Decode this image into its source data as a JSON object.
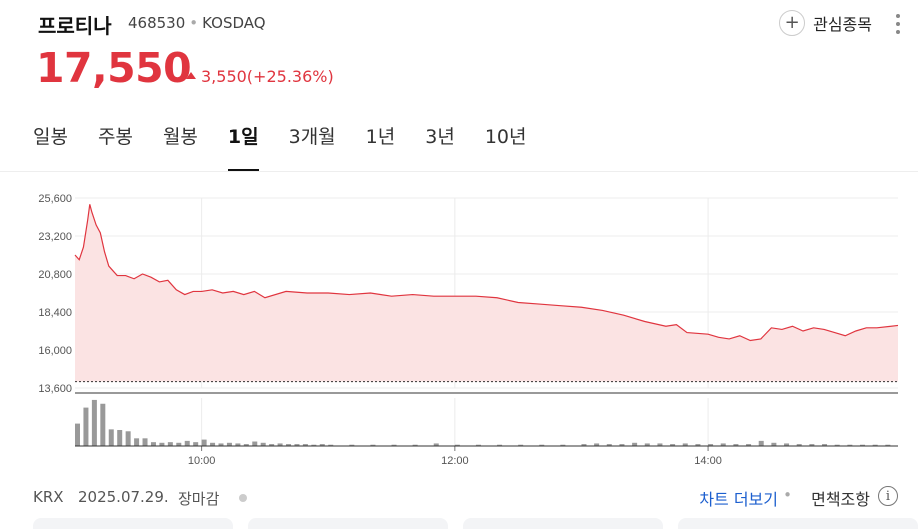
{
  "stock": {
    "name": "프로티나",
    "code": "468530",
    "market": "KOSDAQ",
    "price": "17,550",
    "change": "3,550(+25.36%)"
  },
  "watchlist": {
    "label": "관심종목",
    "plus_icon": "+"
  },
  "tabs": [
    {
      "label": "일봉"
    },
    {
      "label": "주봉"
    },
    {
      "label": "월봉"
    },
    {
      "label": "1일"
    },
    {
      "label": "3개월"
    },
    {
      "label": "1년"
    },
    {
      "label": "3년"
    },
    {
      "label": "10년"
    }
  ],
  "active_tab": "1일",
  "colors": {
    "up": "#e0353f",
    "area_fill": "#fbe3e3",
    "volume": "#999999"
  },
  "chart_data": {
    "type": "area",
    "x_ticks": [
      "10:00",
      "12:00",
      "14:00"
    ],
    "y_ticks": [
      "25,600",
      "23,200",
      "20,800",
      "18,400",
      "16,000",
      "13,600"
    ],
    "ylim": [
      13600,
      25600
    ],
    "x_range": [
      "09:00",
      "15:30"
    ],
    "baseline": 14000,
    "series": [
      {
        "time": "09:00",
        "y": 22000
      },
      {
        "time": "09:02",
        "y": 21700
      },
      {
        "time": "09:04",
        "y": 22500
      },
      {
        "time": "09:06",
        "y": 24200
      },
      {
        "time": "09:07",
        "y": 25200
      },
      {
        "time": "09:08",
        "y": 24700
      },
      {
        "time": "09:10",
        "y": 23900
      },
      {
        "time": "09:12",
        "y": 23400
      },
      {
        "time": "09:14",
        "y": 22200
      },
      {
        "time": "09:16",
        "y": 21300
      },
      {
        "time": "09:18",
        "y": 21000
      },
      {
        "time": "09:20",
        "y": 20700
      },
      {
        "time": "09:24",
        "y": 20700
      },
      {
        "time": "09:28",
        "y": 20500
      },
      {
        "time": "09:32",
        "y": 20800
      },
      {
        "time": "09:36",
        "y": 20600
      },
      {
        "time": "09:40",
        "y": 20300
      },
      {
        "time": "09:44",
        "y": 20400
      },
      {
        "time": "09:48",
        "y": 19800
      },
      {
        "time": "09:52",
        "y": 19500
      },
      {
        "time": "09:56",
        "y": 19700
      },
      {
        "time": "10:00",
        "y": 19700
      },
      {
        "time": "10:05",
        "y": 19800
      },
      {
        "time": "10:10",
        "y": 19600
      },
      {
        "time": "10:15",
        "y": 19700
      },
      {
        "time": "10:20",
        "y": 19500
      },
      {
        "time": "10:25",
        "y": 19700
      },
      {
        "time": "10:30",
        "y": 19300
      },
      {
        "time": "10:40",
        "y": 19700
      },
      {
        "time": "10:50",
        "y": 19600
      },
      {
        "time": "11:00",
        "y": 19600
      },
      {
        "time": "11:10",
        "y": 19500
      },
      {
        "time": "11:20",
        "y": 19600
      },
      {
        "time": "11:30",
        "y": 19400
      },
      {
        "time": "11:40",
        "y": 19500
      },
      {
        "time": "11:50",
        "y": 19400
      },
      {
        "time": "12:00",
        "y": 19400
      },
      {
        "time": "12:10",
        "y": 19400
      },
      {
        "time": "12:20",
        "y": 19300
      },
      {
        "time": "12:30",
        "y": 19000
      },
      {
        "time": "12:40",
        "y": 18900
      },
      {
        "time": "12:50",
        "y": 18800
      },
      {
        "time": "13:00",
        "y": 18700
      },
      {
        "time": "13:10",
        "y": 18500
      },
      {
        "time": "13:20",
        "y": 18200
      },
      {
        "time": "13:30",
        "y": 17800
      },
      {
        "time": "13:40",
        "y": 17500
      },
      {
        "time": "13:45",
        "y": 17600
      },
      {
        "time": "13:50",
        "y": 17100
      },
      {
        "time": "14:00",
        "y": 17000
      },
      {
        "time": "14:05",
        "y": 16800
      },
      {
        "time": "14:10",
        "y": 16700
      },
      {
        "time": "14:15",
        "y": 16900
      },
      {
        "time": "14:20",
        "y": 16600
      },
      {
        "time": "14:25",
        "y": 16700
      },
      {
        "time": "14:30",
        "y": 17400
      },
      {
        "time": "14:35",
        "y": 17300
      },
      {
        "time": "14:40",
        "y": 17500
      },
      {
        "time": "14:45",
        "y": 17200
      },
      {
        "time": "14:50",
        "y": 17400
      },
      {
        "time": "14:55",
        "y": 17300
      },
      {
        "time": "15:00",
        "y": 17100
      },
      {
        "time": "15:05",
        "y": 16900
      },
      {
        "time": "15:10",
        "y": 17200
      },
      {
        "time": "15:15",
        "y": 17400
      },
      {
        "time": "15:20",
        "y": 17400
      },
      {
        "time": "15:30",
        "y": 17550
      }
    ],
    "volume": [
      {
        "time": "09:00",
        "v": 3.5
      },
      {
        "time": "09:04",
        "v": 6.0
      },
      {
        "time": "09:08",
        "v": 7.2
      },
      {
        "time": "09:12",
        "v": 6.6
      },
      {
        "time": "09:16",
        "v": 2.6
      },
      {
        "time": "09:20",
        "v": 2.5
      },
      {
        "time": "09:24",
        "v": 2.3
      },
      {
        "time": "09:28",
        "v": 1.2
      },
      {
        "time": "09:32",
        "v": 1.2
      },
      {
        "time": "09:36",
        "v": 0.6
      },
      {
        "time": "09:40",
        "v": 0.5
      },
      {
        "time": "09:44",
        "v": 0.6
      },
      {
        "time": "09:48",
        "v": 0.5
      },
      {
        "time": "09:52",
        "v": 0.8
      },
      {
        "time": "09:56",
        "v": 0.6
      },
      {
        "time": "10:00",
        "v": 1.0
      },
      {
        "time": "10:04",
        "v": 0.5
      },
      {
        "time": "10:08",
        "v": 0.4
      },
      {
        "time": "10:12",
        "v": 0.5
      },
      {
        "time": "10:16",
        "v": 0.4
      },
      {
        "time": "10:20",
        "v": 0.3
      },
      {
        "time": "10:24",
        "v": 0.7
      },
      {
        "time": "10:28",
        "v": 0.5
      },
      {
        "time": "10:32",
        "v": 0.3
      },
      {
        "time": "10:36",
        "v": 0.4
      },
      {
        "time": "10:40",
        "v": 0.3
      },
      {
        "time": "10:44",
        "v": 0.3
      },
      {
        "time": "10:48",
        "v": 0.3
      },
      {
        "time": "10:52",
        "v": 0.2
      },
      {
        "time": "10:56",
        "v": 0.3
      },
      {
        "time": "11:00",
        "v": 0.2
      },
      {
        "time": "11:10",
        "v": 0.2
      },
      {
        "time": "11:20",
        "v": 0.2
      },
      {
        "time": "11:30",
        "v": 0.2
      },
      {
        "time": "11:40",
        "v": 0.2
      },
      {
        "time": "11:50",
        "v": 0.4
      },
      {
        "time": "12:00",
        "v": 0.2
      },
      {
        "time": "12:10",
        "v": 0.2
      },
      {
        "time": "12:20",
        "v": 0.2
      },
      {
        "time": "12:30",
        "v": 0.2
      },
      {
        "time": "12:40",
        "v": 0.2
      },
      {
        "time": "12:50",
        "v": 0.2
      },
      {
        "time": "13:00",
        "v": 0.3
      },
      {
        "time": "13:06",
        "v": 0.4
      },
      {
        "time": "13:12",
        "v": 0.3
      },
      {
        "time": "13:18",
        "v": 0.3
      },
      {
        "time": "13:24",
        "v": 0.5
      },
      {
        "time": "13:30",
        "v": 0.4
      },
      {
        "time": "13:36",
        "v": 0.4
      },
      {
        "time": "13:42",
        "v": 0.3
      },
      {
        "time": "13:48",
        "v": 0.4
      },
      {
        "time": "13:54",
        "v": 0.3
      },
      {
        "time": "14:00",
        "v": 0.3
      },
      {
        "time": "14:06",
        "v": 0.4
      },
      {
        "time": "14:12",
        "v": 0.3
      },
      {
        "time": "14:18",
        "v": 0.3
      },
      {
        "time": "14:24",
        "v": 0.8
      },
      {
        "time": "14:30",
        "v": 0.5
      },
      {
        "time": "14:36",
        "v": 0.4
      },
      {
        "time": "14:42",
        "v": 0.3
      },
      {
        "time": "14:48",
        "v": 0.3
      },
      {
        "time": "14:54",
        "v": 0.3
      },
      {
        "time": "15:00",
        "v": 0.2
      },
      {
        "time": "15:06",
        "v": 0.2
      },
      {
        "time": "15:12",
        "v": 0.2
      },
      {
        "time": "15:18",
        "v": 0.2
      },
      {
        "time": "15:24",
        "v": 0.2
      }
    ]
  },
  "footer": {
    "exchange": "KRX",
    "date": "2025.07.29.",
    "status": "장마감",
    "more_chart": "차트 더보기",
    "separator": "•",
    "disclaimer": "면책조항",
    "info_icon": "i"
  }
}
